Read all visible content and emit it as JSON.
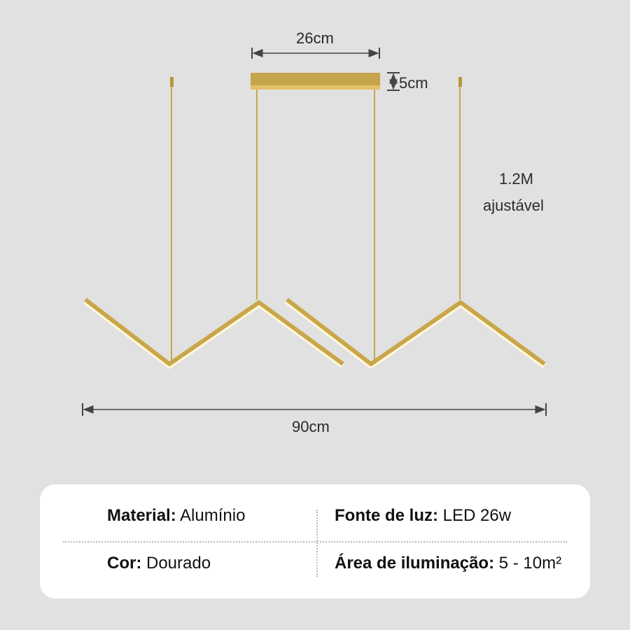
{
  "dimensions": {
    "canopy_width": "26cm",
    "canopy_height": "5cm",
    "cable_length_line1": "1.2M",
    "cable_length_line2": "ajustável",
    "total_width": "90cm"
  },
  "colors": {
    "background": "#e1e1e1",
    "gold": "#c9a64a",
    "card": "#ffffff"
  },
  "specs": [
    {
      "label": "Material:",
      "value": "Alumínio"
    },
    {
      "label": "Fonte de luz:",
      "value": "LED 26w"
    },
    {
      "label": "Cor:",
      "value": "Dourado"
    },
    {
      "label": "Área de iluminação:",
      "value": "5 - 10m²"
    }
  ]
}
